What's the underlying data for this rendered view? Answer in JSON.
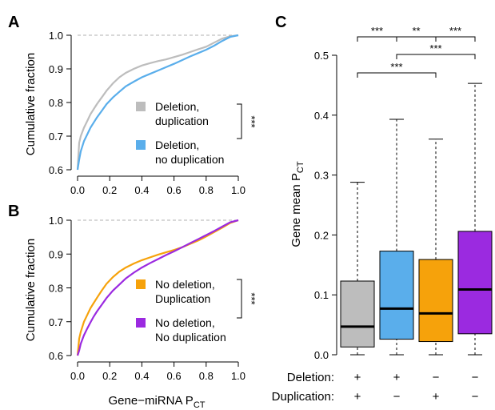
{
  "panels": {
    "a": "A",
    "b": "B",
    "c": "C"
  },
  "chart_data": [
    {
      "type": "line",
      "panel": "A",
      "ylabel": "Cumulative fraction",
      "xlabel": "",
      "xlim": [
        0,
        1
      ],
      "ylim": [
        0.6,
        1.0
      ],
      "xticks": [
        "0.0",
        "0.2",
        "0.4",
        "0.6",
        "0.8",
        "1.0"
      ],
      "yticks": [
        "0.6",
        "0.7",
        "0.8",
        "0.9",
        "1.0"
      ],
      "reference_line": 1.0,
      "significance": "***",
      "series": [
        {
          "name": "Deletion, duplication",
          "label_lines": [
            "Deletion,",
            "duplication"
          ],
          "color": "#bdbdbd",
          "x": [
            0.0,
            0.01,
            0.02,
            0.04,
            0.06,
            0.08,
            0.1,
            0.12,
            0.15,
            0.18,
            0.22,
            0.26,
            0.3,
            0.35,
            0.4,
            0.45,
            0.5,
            0.55,
            0.6,
            0.65,
            0.7,
            0.75,
            0.8,
            0.85,
            0.9,
            0.95,
            1.0
          ],
          "y": [
            0.6,
            0.68,
            0.7,
            0.725,
            0.745,
            0.765,
            0.78,
            0.795,
            0.815,
            0.835,
            0.857,
            0.875,
            0.888,
            0.9,
            0.91,
            0.917,
            0.923,
            0.928,
            0.935,
            0.942,
            0.95,
            0.958,
            0.966,
            0.978,
            0.99,
            0.997,
            1.0
          ]
        },
        {
          "name": "Deletion, no duplication",
          "label_lines": [
            "Deletion,",
            "no duplication"
          ],
          "color": "#5aaeeb",
          "x": [
            0.0,
            0.01,
            0.02,
            0.04,
            0.06,
            0.08,
            0.1,
            0.12,
            0.15,
            0.18,
            0.22,
            0.26,
            0.3,
            0.35,
            0.4,
            0.45,
            0.5,
            0.55,
            0.6,
            0.65,
            0.7,
            0.75,
            0.8,
            0.85,
            0.9,
            0.95,
            1.0
          ],
          "y": [
            0.58,
            0.63,
            0.655,
            0.685,
            0.705,
            0.725,
            0.74,
            0.755,
            0.775,
            0.795,
            0.815,
            0.832,
            0.848,
            0.862,
            0.875,
            0.885,
            0.895,
            0.905,
            0.915,
            0.926,
            0.937,
            0.947,
            0.957,
            0.969,
            0.983,
            0.995,
            1.0
          ]
        }
      ]
    },
    {
      "type": "line",
      "panel": "B",
      "ylabel": "Cumulative fraction",
      "xlabel": "Gene−miRNA P",
      "xlabel_sub": "CT",
      "xlim": [
        0,
        1
      ],
      "ylim": [
        0.6,
        1.0
      ],
      "xticks": [
        "0.0",
        "0.2",
        "0.4",
        "0.6",
        "0.8",
        "1.0"
      ],
      "yticks": [
        "0.6",
        "0.7",
        "0.8",
        "0.9",
        "1.0"
      ],
      "reference_line": 1.0,
      "significance": "***",
      "series": [
        {
          "name": "No deletion, Duplication",
          "label_lines": [
            "No deletion,",
            "Duplication"
          ],
          "color": "#f6a20b",
          "x": [
            0.0,
            0.01,
            0.02,
            0.04,
            0.06,
            0.08,
            0.1,
            0.12,
            0.15,
            0.18,
            0.22,
            0.26,
            0.3,
            0.35,
            0.4,
            0.45,
            0.5,
            0.55,
            0.6,
            0.65,
            0.7,
            0.75,
            0.8,
            0.85,
            0.9,
            0.95,
            1.0
          ],
          "y": [
            0.6,
            0.65,
            0.67,
            0.7,
            0.72,
            0.74,
            0.755,
            0.77,
            0.792,
            0.812,
            0.832,
            0.848,
            0.86,
            0.872,
            0.882,
            0.89,
            0.898,
            0.905,
            0.912,
            0.92,
            0.93,
            0.94,
            0.952,
            0.965,
            0.978,
            0.992,
            1.0
          ]
        },
        {
          "name": "No deletion, No duplication",
          "label_lines": [
            "No deletion,",
            "No duplication"
          ],
          "color": "#9b2ae0",
          "x": [
            0.0,
            0.01,
            0.02,
            0.04,
            0.06,
            0.08,
            0.1,
            0.12,
            0.15,
            0.18,
            0.22,
            0.26,
            0.3,
            0.35,
            0.4,
            0.45,
            0.5,
            0.55,
            0.6,
            0.65,
            0.7,
            0.75,
            0.8,
            0.85,
            0.9,
            0.95,
            1.0
          ],
          "y": [
            0.58,
            0.615,
            0.635,
            0.66,
            0.68,
            0.698,
            0.715,
            0.73,
            0.75,
            0.77,
            0.792,
            0.81,
            0.828,
            0.845,
            0.86,
            0.873,
            0.885,
            0.897,
            0.908,
            0.92,
            0.932,
            0.944,
            0.956,
            0.968,
            0.981,
            0.994,
            1.0
          ]
        }
      ]
    },
    {
      "type": "box",
      "panel": "C",
      "ylabel": "Gene mean P",
      "ylabel_sub": "CT",
      "ylim": [
        0,
        0.5
      ],
      "yticks": [
        "0.0",
        "0.1",
        "0.2",
        "0.3",
        "0.4",
        "0.5"
      ],
      "row_labels": [
        "Deletion:",
        "Duplication:"
      ],
      "groups": [
        {
          "deletion": "+",
          "duplication": "+",
          "color": "#bdbdbd",
          "min": 0.0,
          "q1": 0.013,
          "median": 0.047,
          "q3": 0.123,
          "max": 0.288
        },
        {
          "deletion": "+",
          "duplication": "−",
          "color": "#5aaeeb",
          "min": 0.0,
          "q1": 0.026,
          "median": 0.077,
          "q3": 0.173,
          "max": 0.393
        },
        {
          "deletion": "−",
          "duplication": "+",
          "color": "#f6a20b",
          "min": 0.0,
          "q1": 0.022,
          "median": 0.069,
          "q3": 0.159,
          "max": 0.36
        },
        {
          "deletion": "−",
          "duplication": "−",
          "color": "#9b2ae0",
          "min": 0.0,
          "q1": 0.035,
          "median": 0.109,
          "q3": 0.206,
          "max": 0.453
        }
      ],
      "comparisons": [
        {
          "from": 0,
          "to": 1,
          "label": "***"
        },
        {
          "from": 1,
          "to": 2,
          "label": "**"
        },
        {
          "from": 2,
          "to": 3,
          "label": "***"
        },
        {
          "from": 1,
          "to": 3,
          "label": "***"
        },
        {
          "from": 0,
          "to": 2,
          "label": "***"
        }
      ]
    }
  ]
}
